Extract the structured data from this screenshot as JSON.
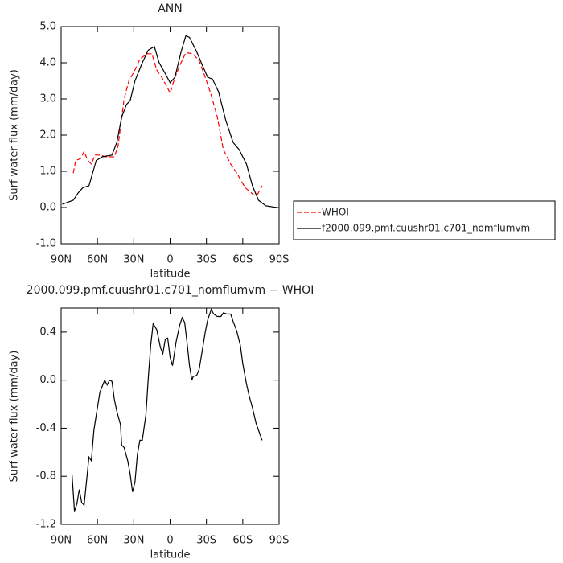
{
  "chart_data": [
    {
      "type": "line",
      "title": "ANN",
      "x_label": "latitude",
      "y_label": "Surf water flux (mm/day)",
      "xlim": [
        90,
        -90
      ],
      "xticks": [
        {
          "value": 90,
          "label": "90N"
        },
        {
          "value": 60,
          "label": "60N"
        },
        {
          "value": 30,
          "label": "30N"
        },
        0,
        {
          "value": -30,
          "label": "30S"
        },
        {
          "value": -60,
          "label": "60S"
        },
        {
          "value": -90,
          "label": "90S"
        }
      ],
      "ylim": [
        -1,
        5
      ],
      "yticks": [
        {
          "value": -1,
          "label": "-1.0"
        },
        {
          "value": 0,
          "label": "0.0"
        },
        {
          "value": 1,
          "label": "1.0"
        },
        {
          "value": 2,
          "label": "2.0"
        },
        {
          "value": 3,
          "label": "3.0"
        },
        {
          "value": 4,
          "label": "4.0"
        },
        {
          "value": 5,
          "label": "5.0"
        }
      ],
      "legend": "right",
      "series": [
        {
          "name": "WHOI",
          "color": "#ff0000",
          "dashed": true,
          "x": [
            80,
            78,
            74,
            71,
            68,
            65,
            62,
            58,
            53,
            46,
            43,
            38,
            34,
            29,
            25,
            19,
            15,
            11,
            7,
            2,
            0,
            -4,
            -9,
            -13,
            -19,
            -24,
            -29,
            -34,
            -39,
            -44,
            -50,
            -56,
            -62,
            -69,
            -72,
            -76
          ],
          "values": [
            0.95,
            1.3,
            1.35,
            1.55,
            1.3,
            1.2,
            1.45,
            1.45,
            1.4,
            1.4,
            1.7,
            3.0,
            3.5,
            3.8,
            4.1,
            4.25,
            4.25,
            3.8,
            3.6,
            3.3,
            3.15,
            3.6,
            4.0,
            4.28,
            4.25,
            4.05,
            3.6,
            3.1,
            2.5,
            1.6,
            1.2,
            0.9,
            0.55,
            0.35,
            0.35,
            0.6
          ]
        },
        {
          "name": "f2000.099.pmf.cuushr01.c701_nomflumvm",
          "color": "#000000",
          "dashed": false,
          "x": [
            89,
            80,
            76,
            72,
            67,
            61,
            56,
            48,
            44,
            40,
            36,
            33,
            29,
            23,
            18,
            13,
            9,
            4,
            0,
            -4,
            -9,
            -13,
            -16,
            -22,
            -27,
            -31,
            -35,
            -40,
            -46,
            -52,
            -57,
            -63,
            -68,
            -73,
            -79,
            -88
          ],
          "values": [
            0.09,
            0.2,
            0.4,
            0.55,
            0.6,
            1.3,
            1.4,
            1.45,
            1.8,
            2.5,
            2.85,
            2.95,
            3.5,
            4.0,
            4.35,
            4.45,
            4.0,
            3.7,
            3.45,
            3.6,
            4.3,
            4.75,
            4.7,
            4.3,
            3.9,
            3.6,
            3.55,
            3.2,
            2.4,
            1.8,
            1.6,
            1.2,
            0.6,
            0.2,
            0.05,
            0.0
          ]
        }
      ]
    },
    {
      "type": "line",
      "title": "2000.099.pmf.cuushr01.c701_nomflumvm − WHOI",
      "x_label": "latitude",
      "y_label": "Surf water flux (mm/day)",
      "xlim": [
        90,
        -90
      ],
      "xticks": [
        {
          "value": 90,
          "label": "90N"
        },
        {
          "value": 60,
          "label": "60N"
        },
        {
          "value": 30,
          "label": "30N"
        },
        0,
        {
          "value": -30,
          "label": "30S"
        },
        {
          "value": -60,
          "label": "60S"
        },
        {
          "value": -90,
          "label": "90S"
        }
      ],
      "ylim": [
        -1.2,
        0.6
      ],
      "yticks": [
        -1.2,
        -0.8,
        -0.4,
        {
          "value": 0,
          "label": "0.0"
        },
        0.4
      ],
      "series": [
        {
          "color": "#000000",
          "dashed": false,
          "x": [
            81,
            79,
            77,
            75,
            73,
            71,
            69,
            67,
            65,
            63,
            61,
            58,
            56,
            54,
            52,
            50,
            48,
            46,
            44,
            41,
            40,
            38,
            35,
            33,
            31,
            29,
            27,
            25,
            23,
            20,
            18,
            16,
            14,
            11,
            8,
            6,
            4,
            2,
            0,
            -2,
            -5,
            -8,
            -10,
            -12,
            -14,
            -16,
            -18,
            -19,
            -22,
            -24,
            -26,
            -29,
            -31,
            -34,
            -36,
            -39,
            -42,
            -44,
            -47,
            -50,
            -52,
            -55,
            -58,
            -60,
            -63,
            -65,
            -68,
            -71,
            -76
          ],
          "values": [
            -0.78,
            -1.09,
            -1.03,
            -0.91,
            -1.02,
            -1.04,
            -0.84,
            -0.64,
            -0.67,
            -0.42,
            -0.29,
            -0.1,
            -0.05,
            0.0,
            -0.04,
            0.0,
            -0.01,
            -0.16,
            -0.26,
            -0.37,
            -0.54,
            -0.56,
            -0.67,
            -0.78,
            -0.93,
            -0.85,
            -0.62,
            -0.5,
            -0.5,
            -0.29,
            0.02,
            0.29,
            0.47,
            0.42,
            0.27,
            0.22,
            0.34,
            0.35,
            0.19,
            0.12,
            0.32,
            0.46,
            0.52,
            0.48,
            0.31,
            0.12,
            0.0,
            0.03,
            0.04,
            0.09,
            0.21,
            0.4,
            0.5,
            0.59,
            0.55,
            0.53,
            0.53,
            0.56,
            0.55,
            0.55,
            0.49,
            0.41,
            0.29,
            0.14,
            -0.03,
            -0.12,
            -0.23,
            -0.36,
            -0.5
          ]
        }
      ]
    }
  ]
}
